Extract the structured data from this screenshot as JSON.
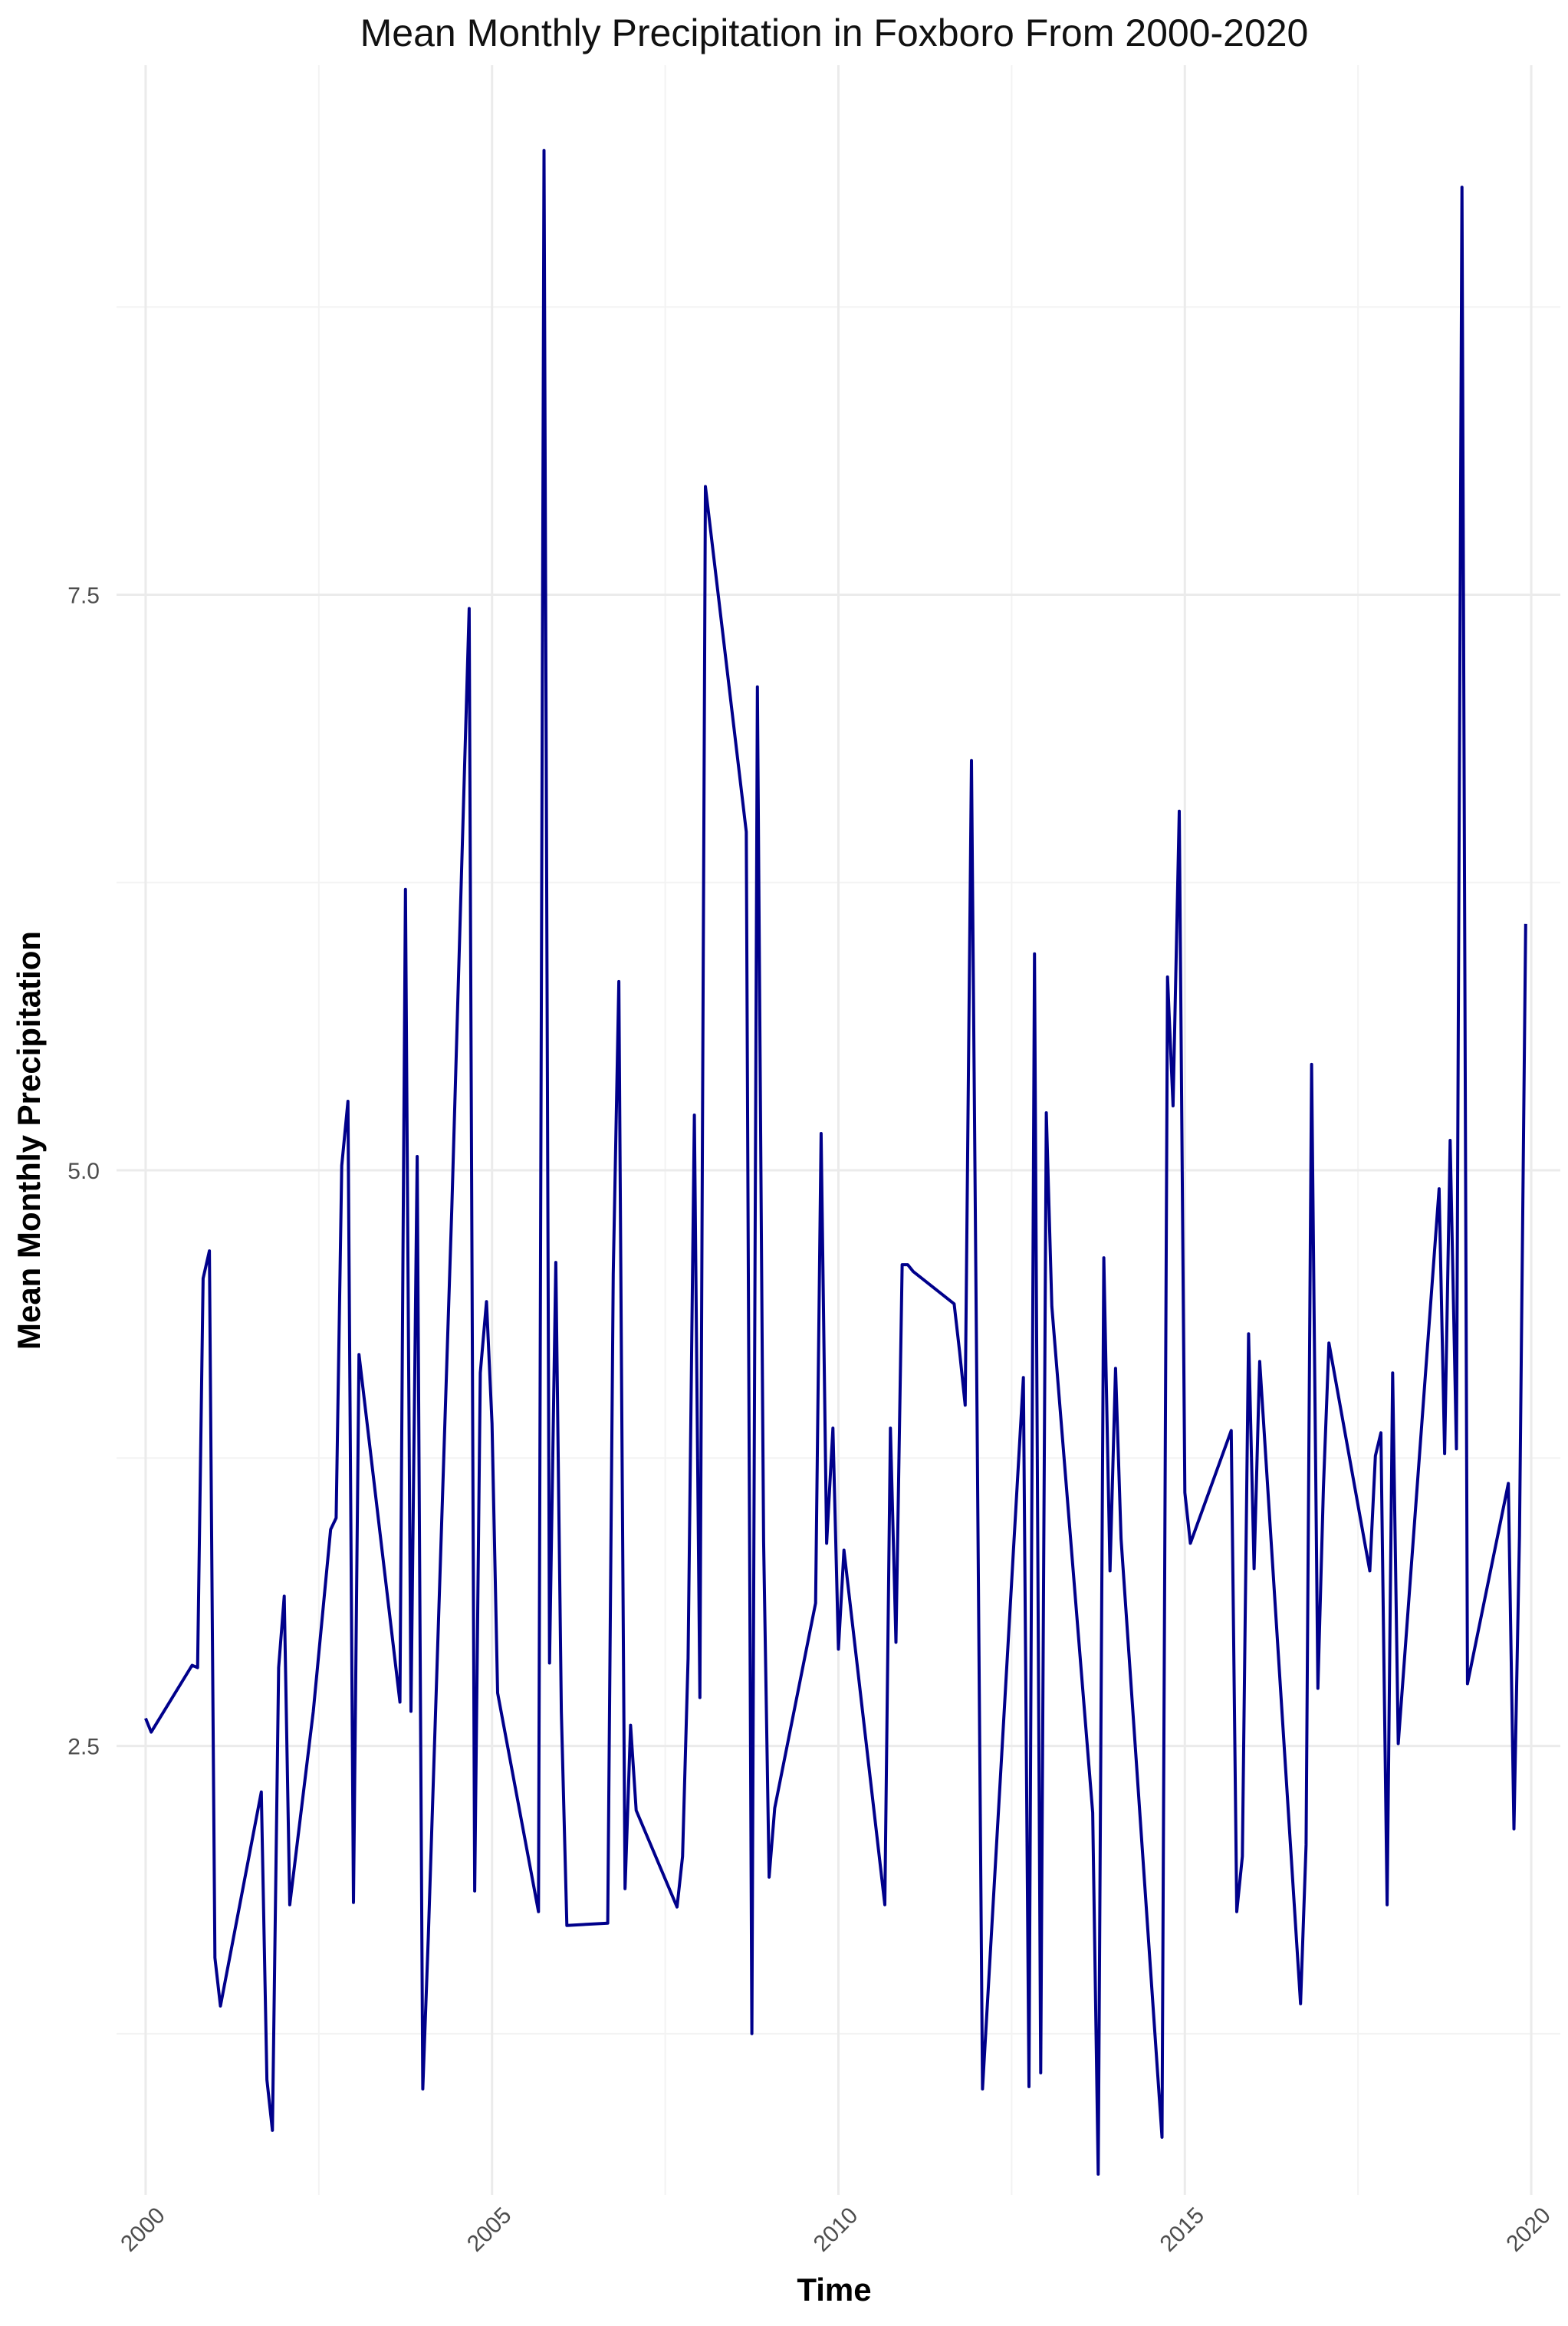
{
  "chart_data": {
    "type": "line",
    "title": "Mean Monthly Precipitation in Foxboro From 2000-2020",
    "xlabel": "Time",
    "ylabel": "Mean Monthly Precipitation",
    "xlim": [
      1999.58,
      2020.42
    ],
    "ylim": [
      0.55,
      9.8
    ],
    "x_ticks": [
      2000,
      2005,
      2010,
      2015,
      2020
    ],
    "x_tick_labels": [
      "2000",
      "2005",
      "2010",
      "2015",
      "2020"
    ],
    "y_ticks": [
      2.5,
      5.0,
      7.5
    ],
    "y_tick_labels": [
      "2.5",
      "5.0",
      "7.5"
    ],
    "grid": true,
    "legend": "none",
    "colors": {
      "line": "#00008B",
      "grid": "#EBEBEB"
    },
    "series": [
      {
        "x": [
          2000.0,
          2000.08,
          2000.67,
          2000.75,
          2000.83,
          2000.92,
          2001.0,
          2001.08,
          2001.67,
          2001.75,
          2001.83,
          2001.92,
          2002.0,
          2002.08,
          2002.42,
          2002.67,
          2002.75,
          2002.83,
          2002.92,
          2003.0,
          2003.08,
          2003.67,
          2003.75,
          2003.83,
          2003.92,
          2004.0,
          2004.08,
          2004.42,
          2004.67,
          2004.75,
          2004.83,
          2004.92,
          2005.0,
          2005.08,
          2005.67,
          2005.75,
          2005.83,
          2005.92,
          2006.0,
          2006.08,
          2006.67,
          2006.75,
          2006.83,
          2006.92,
          2007.0,
          2007.08,
          2007.67,
          2007.75,
          2007.83,
          2007.92,
          2008.0,
          2008.08,
          2008.67,
          2008.75,
          2008.83,
          2008.92,
          2009.0,
          2009.08,
          2009.67,
          2009.75,
          2009.83,
          2009.92,
          2010.0,
          2010.08,
          2010.67,
          2010.75,
          2010.83,
          2010.92,
          2011.0,
          2011.08,
          2011.67,
          2011.75,
          2011.83,
          2011.92,
          2012.0,
          2012.08,
          2012.67,
          2012.75,
          2012.83,
          2012.92,
          2013.0,
          2013.08,
          2013.67,
          2013.75,
          2013.83,
          2013.92,
          2014.0,
          2014.08,
          2014.67,
          2014.75,
          2014.83,
          2014.92,
          2015.0,
          2015.08,
          2015.67,
          2015.75,
          2015.83,
          2015.92,
          2016.0,
          2016.08,
          2016.67,
          2016.75,
          2016.83,
          2016.92,
          2017.0,
          2017.08,
          2017.67,
          2017.75,
          2017.83,
          2017.92,
          2018.0,
          2018.08,
          2018.67,
          2018.75,
          2018.83,
          2018.92,
          2019.0,
          2019.08,
          2019.67,
          2019.75,
          2019.83,
          2019.92
        ],
        "y": [
          2.62,
          2.56,
          2.85,
          2.84,
          4.53,
          4.65,
          1.58,
          1.37,
          2.3,
          1.05,
          0.83,
          2.84,
          3.15,
          1.81,
          2.65,
          3.44,
          3.49,
          5.02,
          5.3,
          1.82,
          4.2,
          2.69,
          6.22,
          2.65,
          5.06,
          1.01,
          1.67,
          4.84,
          7.44,
          1.87,
          4.12,
          4.43,
          3.9,
          2.73,
          1.78,
          9.43,
          2.86,
          4.6,
          2.65,
          1.72,
          1.73,
          4.55,
          5.82,
          1.88,
          2.59,
          2.22,
          1.8,
          2.02,
          2.88,
          5.24,
          2.71,
          7.97,
          6.47,
          1.25,
          7.1,
          3.39,
          1.93,
          2.23,
          3.12,
          5.16,
          3.38,
          3.88,
          2.92,
          3.35,
          1.81,
          3.88,
          2.95,
          4.59,
          4.59,
          4.56,
          4.42,
          4.21,
          3.98,
          6.78,
          3.97,
          1.01,
          4.1,
          1.02,
          5.94,
          1.08,
          5.25,
          4.41,
          2.21,
          0.64,
          4.62,
          3.26,
          4.14,
          3.4,
          0.8,
          5.84,
          5.28,
          6.56,
          3.6,
          3.38,
          3.87,
          1.78,
          2.02,
          4.29,
          3.27,
          4.17,
          1.38,
          2.07,
          5.46,
          2.75,
          3.62,
          4.25,
          3.26,
          3.76,
          3.86,
          1.81,
          4.12,
          2.51,
          4.92,
          3.77,
          5.13,
          3.79,
          9.27,
          2.77,
          3.64,
          2.14,
          3.41,
          6.07
        ]
      }
    ]
  }
}
